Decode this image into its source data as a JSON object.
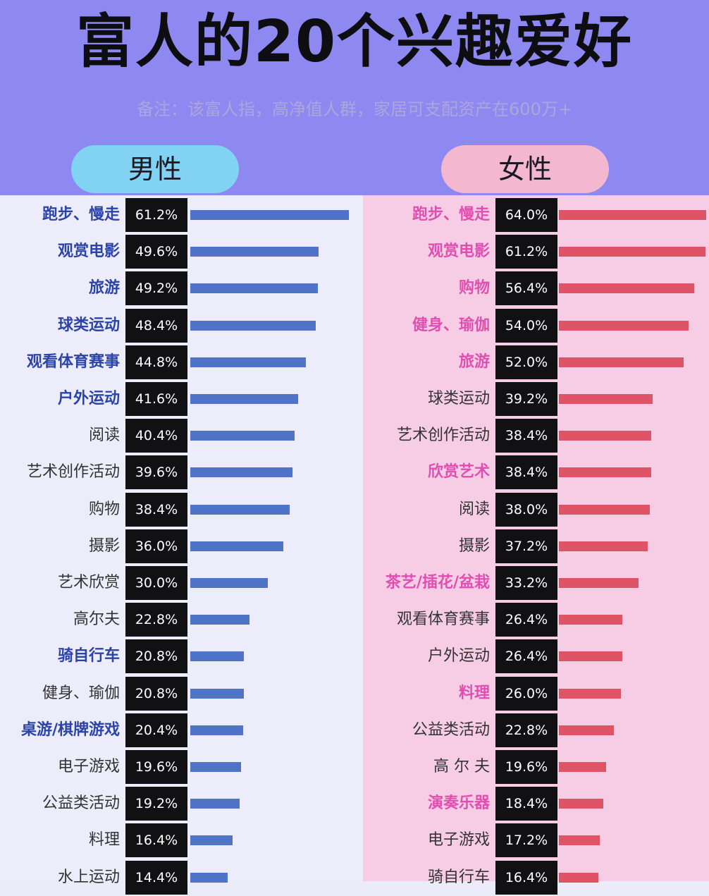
{
  "title": "富人的20个兴趣爱好",
  "subtitle": "备注：该富人指，高净值人群，家居可支配资产在600万+",
  "colors": {
    "header_bg": "#8e89f0",
    "male_pill": "#82d3f3",
    "female_pill": "#f3b7cf",
    "male_bar": "#4f73c7",
    "female_bar": "#df5366",
    "male_highlight_text": "#2c43a8",
    "female_highlight_text": "#df4fb0"
  },
  "chart_data": [
    {
      "type": "bar",
      "orientation": "horizontal",
      "title": "男性",
      "unit": "%",
      "categories": [
        "跑步、慢走",
        "观赏电影",
        "旅游",
        "球类运动",
        "观看体育赛事",
        "户外运动",
        "阅读",
        "艺术创作活动",
        "购物",
        "摄影",
        "艺术欣赏",
        "高尔夫",
        "骑自行车",
        "健身、瑜伽",
        "桌游/棋牌游戏",
        "电子游戏",
        "公益类活动",
        "料理",
        "水上运动"
      ],
      "values": [
        61.2,
        49.6,
        49.2,
        48.4,
        44.8,
        41.6,
        40.4,
        39.6,
        38.4,
        36.0,
        30.0,
        22.8,
        20.8,
        20.8,
        20.4,
        19.6,
        19.2,
        16.4,
        14.4
      ],
      "value_labels": [
        "61.2%",
        "49.6%",
        "49.2%",
        "48.4%",
        "44.8%",
        "41.6%",
        "40.4%",
        "39.6%",
        "38.4%",
        "36.0%",
        "30.0%",
        "22.8%",
        "20.8%",
        "20.8%",
        "20.4%",
        "19.6%",
        "19.2%",
        "16.4%",
        "14.4%"
      ],
      "highlighted": [
        true,
        true,
        true,
        true,
        true,
        true,
        false,
        false,
        false,
        false,
        false,
        false,
        true,
        false,
        true,
        false,
        false,
        false,
        false
      ]
    },
    {
      "type": "bar",
      "orientation": "horizontal",
      "title": "女性",
      "unit": "%",
      "categories": [
        "跑步、慢走",
        "观赏电影",
        "购物",
        "健身、瑜伽",
        "旅游",
        "球类运动",
        "艺术创作活动",
        "欣赏艺术",
        "阅读",
        "摄影",
        "茶艺/插花/盆栽",
        "观看体育赛事",
        "户外运动",
        "料理",
        "公益类活动",
        "高 尔 夫",
        "演奏乐器",
        "电子游戏",
        "骑自行车"
      ],
      "values": [
        64.0,
        61.2,
        56.4,
        54.0,
        52.0,
        39.2,
        38.4,
        38.4,
        38.0,
        37.2,
        33.2,
        26.4,
        26.4,
        26.0,
        22.8,
        19.6,
        18.4,
        17.2,
        16.4
      ],
      "value_labels": [
        "64.0%",
        "61.2%",
        "56.4%",
        "54.0%",
        "52.0%",
        "39.2%",
        "38.4%",
        "38.4%",
        "38.0%",
        "37.2%",
        "33.2%",
        "26.4%",
        "26.4%",
        "26.0%",
        "22.8%",
        "19.6%",
        "18.4%",
        "17.2%",
        "16.4%"
      ],
      "highlighted": [
        true,
        true,
        true,
        true,
        true,
        false,
        false,
        true,
        false,
        false,
        true,
        false,
        false,
        true,
        false,
        false,
        true,
        false,
        false
      ]
    }
  ]
}
